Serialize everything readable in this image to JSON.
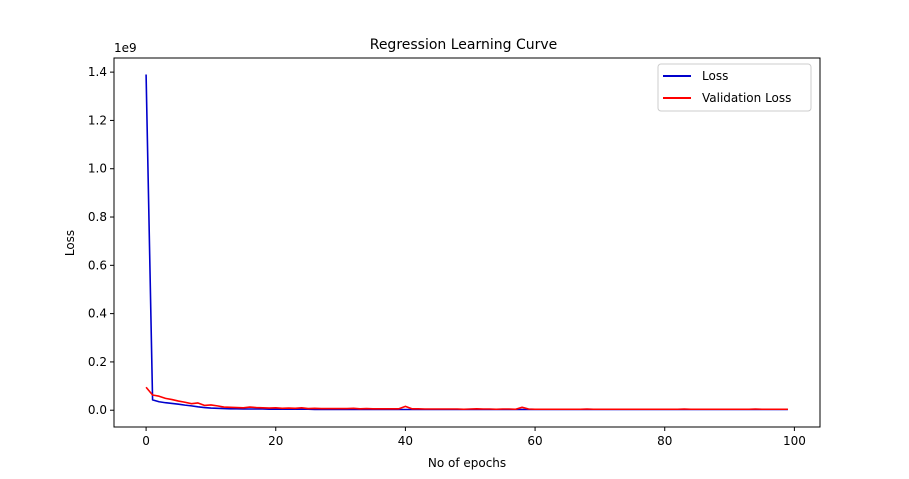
{
  "chart_data": {
    "type": "line",
    "title": "Regression Learning Curve",
    "xlabel": "No of epochs",
    "ylabel": "Loss",
    "y_offset_label": "1e9",
    "xlim": [
      -4.95,
      103.95
    ],
    "ylim": [
      -0.0695,
      1.4585
    ],
    "y_unit_multiplier": 1000000000,
    "xticks": [
      0,
      20,
      40,
      60,
      80,
      100
    ],
    "xtick_labels": [
      "0",
      "20",
      "40",
      "60",
      "80",
      "100"
    ],
    "yticks": [
      0.0,
      0.2,
      0.4,
      0.6,
      0.8,
      1.0,
      1.2,
      1.4
    ],
    "ytick_labels": [
      "0.0",
      "0.2",
      "0.4",
      "0.6",
      "0.8",
      "1.0",
      "1.2",
      "1.4"
    ],
    "grid": false,
    "legend_position": "top-right",
    "series": [
      {
        "name": "Loss",
        "color": "#0000cc",
        "x": [
          0,
          1,
          2,
          3,
          4,
          5,
          6,
          7,
          8,
          9,
          10,
          11,
          12,
          13,
          14,
          15,
          16,
          17,
          18,
          19,
          20,
          21,
          22,
          23,
          24,
          25,
          26,
          27,
          28,
          29,
          30,
          31,
          32,
          33,
          34,
          35,
          36,
          37,
          38,
          39,
          40,
          41,
          42,
          43,
          44,
          45,
          46,
          47,
          48,
          49,
          50,
          51,
          52,
          53,
          54,
          55,
          56,
          57,
          58,
          59,
          60,
          61,
          62,
          63,
          64,
          65,
          66,
          67,
          68,
          69,
          70,
          71,
          72,
          73,
          74,
          75,
          76,
          77,
          78,
          79,
          80,
          81,
          82,
          83,
          84,
          85,
          86,
          87,
          88,
          89,
          90,
          91,
          92,
          93,
          94,
          95,
          96,
          97,
          98,
          99
        ],
        "y": [
          1.39,
          0.043,
          0.035,
          0.031,
          0.028,
          0.025,
          0.021,
          0.018,
          0.014,
          0.011,
          0.009,
          0.008,
          0.007,
          0.006,
          0.006,
          0.005,
          0.005,
          0.005,
          0.005,
          0.004,
          0.004,
          0.004,
          0.004,
          0.004,
          0.004,
          0.004,
          0.003,
          0.003,
          0.003,
          0.003,
          0.003,
          0.003,
          0.003,
          0.003,
          0.003,
          0.003,
          0.003,
          0.003,
          0.003,
          0.003,
          0.003,
          0.003,
          0.003,
          0.003,
          0.003,
          0.003,
          0.003,
          0.003,
          0.003,
          0.003,
          0.003,
          0.003,
          0.003,
          0.003,
          0.003,
          0.003,
          0.003,
          0.003,
          0.003,
          0.003,
          0.003,
          0.003,
          0.003,
          0.003,
          0.003,
          0.003,
          0.003,
          0.003,
          0.003,
          0.003,
          0.003,
          0.003,
          0.003,
          0.003,
          0.003,
          0.003,
          0.003,
          0.003,
          0.003,
          0.003,
          0.003,
          0.003,
          0.003,
          0.003,
          0.003,
          0.003,
          0.003,
          0.003,
          0.003,
          0.003,
          0.003,
          0.003,
          0.003,
          0.003,
          0.003,
          0.003,
          0.003,
          0.003,
          0.003,
          0.003
        ]
      },
      {
        "name": "Validation Loss",
        "color": "#ff0000",
        "x": [
          0,
          1,
          2,
          3,
          4,
          5,
          6,
          7,
          8,
          9,
          10,
          11,
          12,
          13,
          14,
          15,
          16,
          17,
          18,
          19,
          20,
          21,
          22,
          23,
          24,
          25,
          26,
          27,
          28,
          29,
          30,
          31,
          32,
          33,
          34,
          35,
          36,
          37,
          38,
          39,
          40,
          41,
          42,
          43,
          44,
          45,
          46,
          47,
          48,
          49,
          50,
          51,
          52,
          53,
          54,
          55,
          56,
          57,
          58,
          59,
          60,
          61,
          62,
          63,
          64,
          65,
          66,
          67,
          68,
          69,
          70,
          71,
          72,
          73,
          74,
          75,
          76,
          77,
          78,
          79,
          80,
          81,
          82,
          83,
          84,
          85,
          86,
          87,
          88,
          89,
          90,
          91,
          92,
          93,
          94,
          95,
          96,
          97,
          98,
          99
        ],
        "y": [
          0.095,
          0.063,
          0.058,
          0.049,
          0.044,
          0.038,
          0.033,
          0.027,
          0.03,
          0.02,
          0.022,
          0.018,
          0.013,
          0.012,
          0.011,
          0.01,
          0.013,
          0.011,
          0.01,
          0.009,
          0.01,
          0.008,
          0.009,
          0.008,
          0.01,
          0.007,
          0.008,
          0.007,
          0.007,
          0.007,
          0.007,
          0.007,
          0.008,
          0.006,
          0.007,
          0.006,
          0.006,
          0.006,
          0.006,
          0.006,
          0.016,
          0.006,
          0.006,
          0.005,
          0.005,
          0.005,
          0.005,
          0.005,
          0.005,
          0.004,
          0.005,
          0.006,
          0.005,
          0.005,
          0.004,
          0.005,
          0.005,
          0.004,
          0.012,
          0.005,
          0.004,
          0.004,
          0.004,
          0.004,
          0.004,
          0.004,
          0.004,
          0.004,
          0.005,
          0.004,
          0.004,
          0.004,
          0.004,
          0.004,
          0.004,
          0.004,
          0.004,
          0.004,
          0.004,
          0.004,
          0.004,
          0.004,
          0.004,
          0.005,
          0.004,
          0.004,
          0.004,
          0.004,
          0.004,
          0.004,
          0.004,
          0.004,
          0.004,
          0.004,
          0.005,
          0.004,
          0.004,
          0.004,
          0.004,
          0.004
        ]
      }
    ]
  }
}
